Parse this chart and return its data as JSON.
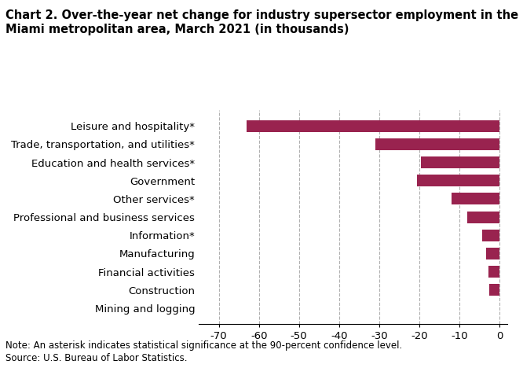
{
  "title_line1": "Chart 2. Over-the-year net change for industry supersector employment in the",
  "title_line2": "Miami metropolitan area, March 2021 (in thousands)",
  "categories": [
    "Mining and logging",
    "Construction",
    "Financial activities",
    "Manufacturing",
    "Information*",
    "Professional and business services",
    "Other services*",
    "Government",
    "Education and health services*",
    "Trade, transportation, and utilities*",
    "Leisure and hospitality*"
  ],
  "values": [
    0.0,
    -2.5,
    -2.8,
    -3.2,
    -4.2,
    -8.0,
    -12.0,
    -20.5,
    -19.5,
    -31.0,
    -63.0
  ],
  "bar_color": "#99234f",
  "xlim": [
    -75,
    2
  ],
  "xticks": [
    -70,
    -60,
    -50,
    -40,
    -30,
    -20,
    -10,
    0
  ],
  "background_color": "#ffffff",
  "note": "Note: An asterisk indicates statistical significance at the 90-percent confidence level.",
  "source": "Source: U.S. Bureau of Labor Statistics.",
  "title_fontsize": 10.5,
  "tick_fontsize": 9.5,
  "note_fontsize": 8.5
}
